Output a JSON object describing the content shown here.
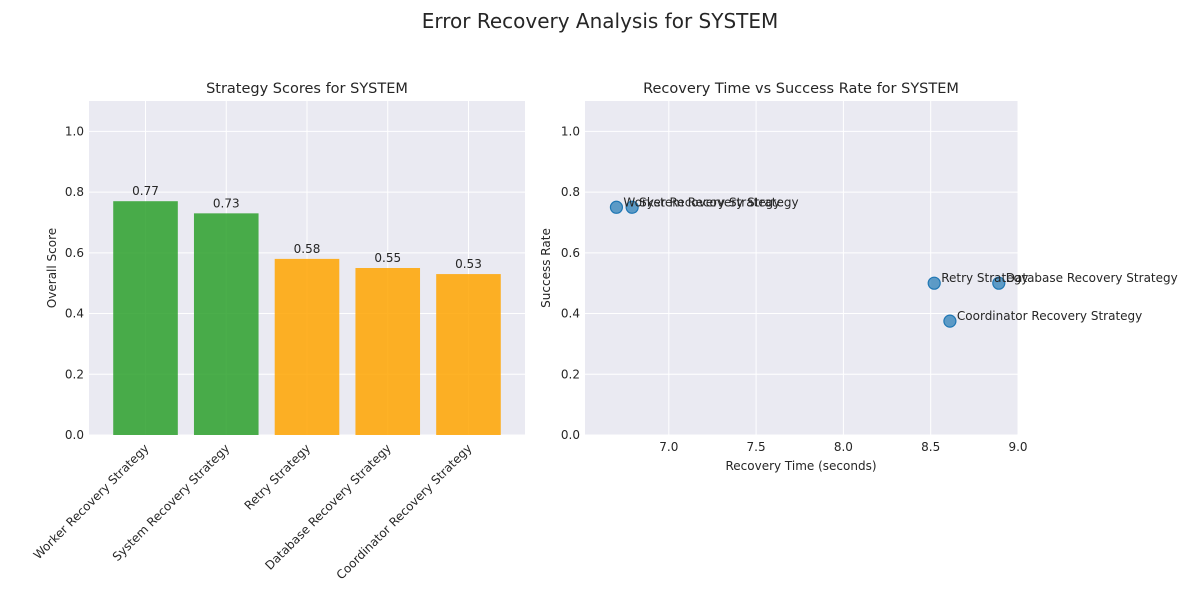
{
  "suptitle": "Error Recovery Analysis for SYSTEM",
  "chart_data": [
    {
      "type": "bar",
      "title": "Strategy Scores for SYSTEM",
      "xlabel": "",
      "ylabel": "Overall Score",
      "categories": [
        "Worker Recovery Strategy",
        "System Recovery Strategy",
        "Retry Strategy",
        "Database Recovery Strategy",
        "Coordinator Recovery Strategy"
      ],
      "values": [
        0.77,
        0.73,
        0.58,
        0.55,
        0.53
      ],
      "value_labels": [
        "0.77",
        "0.73",
        "0.58",
        "0.55",
        "0.53"
      ],
      "bar_colors": [
        "#2ca02c",
        "#2ca02c",
        "#ffa500",
        "#ffa500",
        "#ffa500"
      ],
      "ylim": [
        0,
        1.1
      ],
      "yticks": [
        0.0,
        0.2,
        0.4,
        0.6,
        0.8,
        1.0
      ],
      "ytick_labels": [
        "0.0",
        "0.2",
        "0.4",
        "0.6",
        "0.8",
        "1.0"
      ],
      "grid": true
    },
    {
      "type": "scatter",
      "title": "Recovery Time vs Success Rate for SYSTEM",
      "xlabel": "Recovery Time (seconds)",
      "ylabel": "Success Rate",
      "points": [
        {
          "label": "Worker Recovery Strategy",
          "x": 6.7,
          "y": 0.75
        },
        {
          "label": "System Recovery Strategy",
          "x": 6.79,
          "y": 0.75
        },
        {
          "label": "Retry Strategy",
          "x": 8.52,
          "y": 0.5
        },
        {
          "label": "Database Recovery Strategy",
          "x": 8.89,
          "y": 0.5
        },
        {
          "label": "Coordinator Recovery Strategy",
          "x": 8.61,
          "y": 0.375
        }
      ],
      "point_color": "#1f77b4",
      "xlim": [
        6.52,
        9.0
      ],
      "ylim": [
        0,
        1.1
      ],
      "xticks": [
        7.0,
        7.5,
        8.0,
        8.5,
        9.0
      ],
      "xtick_labels": [
        "7.0",
        "7.5",
        "8.0",
        "8.5",
        "9.0"
      ],
      "yticks": [
        0.0,
        0.2,
        0.4,
        0.6,
        0.8,
        1.0
      ],
      "ytick_labels": [
        "0.0",
        "0.2",
        "0.4",
        "0.6",
        "0.8",
        "1.0"
      ],
      "grid": true
    }
  ]
}
